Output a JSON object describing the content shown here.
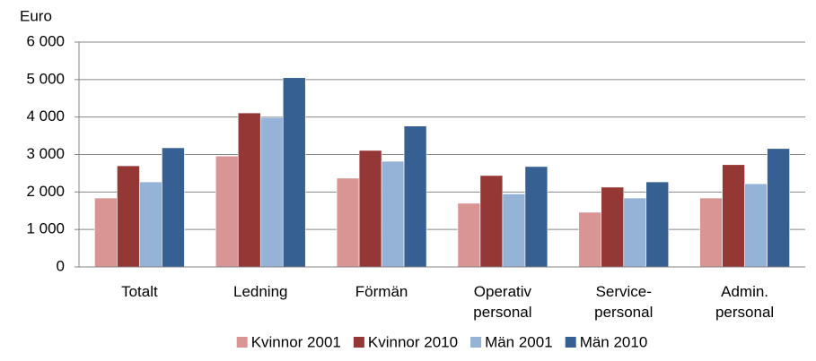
{
  "chart_data": {
    "type": "bar",
    "y_label": "Euro",
    "categories": [
      "Totalt",
      "Ledning",
      "Förmän",
      "Operativ personal",
      "Service-personal",
      "Admin. personal"
    ],
    "series": [
      {
        "name": "Kvinnor 2001",
        "color": "#d99594",
        "values": [
          1840,
          2960,
          2370,
          1700,
          1460,
          1840
        ]
      },
      {
        "name": "Kvinnor 2010",
        "color": "#953735",
        "values": [
          2700,
          4110,
          3110,
          2440,
          2130,
          2730
        ]
      },
      {
        "name": "Män 2001",
        "color": "#95b3d7",
        "values": [
          2270,
          3990,
          2820,
          1950,
          1840,
          2220
        ]
      },
      {
        "name": "Män 2010",
        "color": "#366092",
        "values": [
          3180,
          5050,
          3760,
          2680,
          2270,
          3160
        ]
      }
    ],
    "ylim": [
      0,
      6000
    ],
    "yticks": [
      0,
      {
        "value": 1000,
        "label": "1 000"
      },
      {
        "value": 2000,
        "label": "2 000"
      },
      {
        "value": 3000,
        "label": "3 000"
      },
      {
        "value": 4000,
        "label": "4 000"
      },
      {
        "value": 5000,
        "label": "5 000"
      },
      {
        "value": 6000,
        "label": "6 000"
      }
    ],
    "grid": true,
    "legend": "bottom"
  }
}
